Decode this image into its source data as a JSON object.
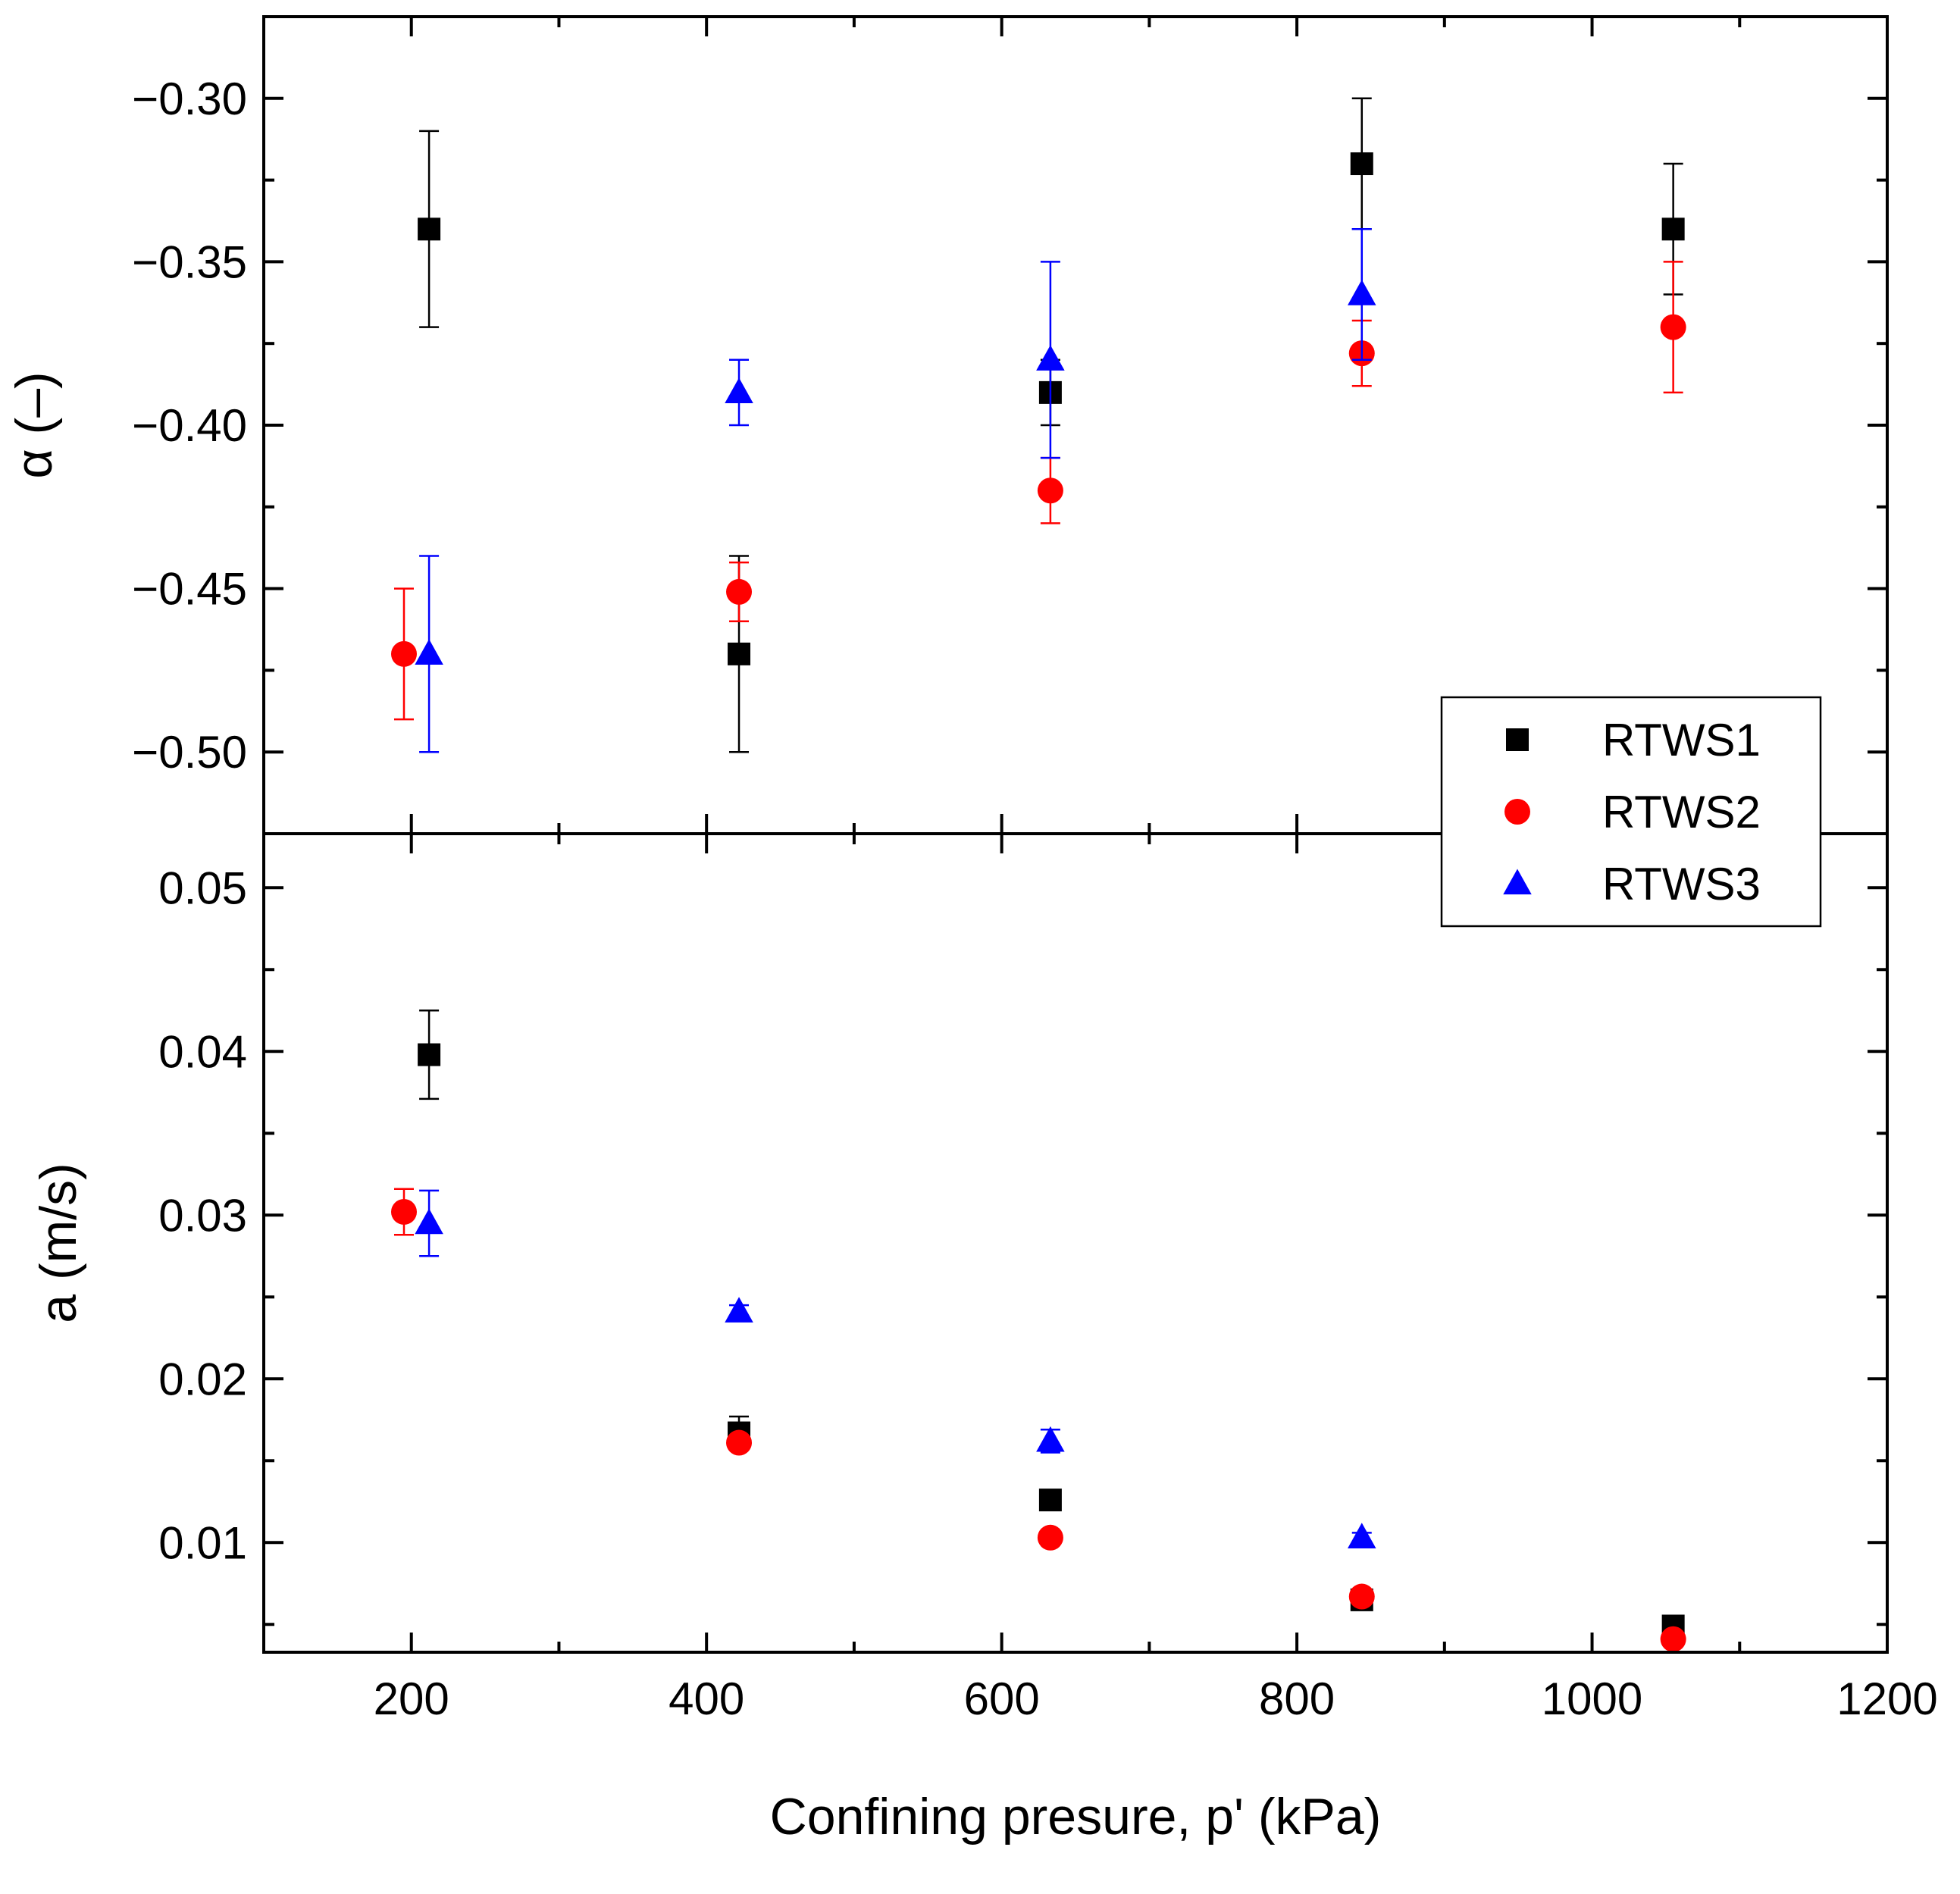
{
  "chart_data": [
    {
      "type": "scatter",
      "panel": "top",
      "xlabel": "",
      "ylabel": "α (–)",
      "xlim": [
        100,
        1200
      ],
      "ylim": [
        -0.525,
        -0.275
      ],
      "yticks": [
        -0.3,
        -0.35,
        -0.4,
        -0.45,
        -0.5
      ],
      "ytick_labels": [
        "−0.30",
        "−0.35",
        "−0.40",
        "−0.45",
        "−0.50"
      ],
      "grid": false,
      "series": [
        {
          "name": "RTWS1",
          "marker": "square",
          "color": "#000000",
          "points": [
            {
              "x": 212,
              "y": -0.34,
              "err_lo": 0.03,
              "err_hi": 0.03
            },
            {
              "x": 422,
              "y": -0.47,
              "err_lo": 0.03,
              "err_hi": 0.03
            },
            {
              "x": 633,
              "y": -0.39,
              "err_lo": 0.01,
              "err_hi": 0.01
            },
            {
              "x": 844,
              "y": -0.32,
              "err_lo": 0.02,
              "err_hi": 0.02
            },
            {
              "x": 1055,
              "y": -0.34,
              "err_lo": 0.02,
              "err_hi": 0.02
            }
          ]
        },
        {
          "name": "RTWS2",
          "marker": "circle",
          "color": "#ff0000",
          "points": [
            {
              "x": 195,
              "y": -0.47,
              "err_lo": 0.02,
              "err_hi": 0.02
            },
            {
              "x": 422,
              "y": -0.451,
              "err_lo": 0.009,
              "err_hi": 0.009
            },
            {
              "x": 633,
              "y": -0.42,
              "err_lo": 0.01,
              "err_hi": 0.01
            },
            {
              "x": 844,
              "y": -0.378,
              "err_lo": 0.01,
              "err_hi": 0.01
            },
            {
              "x": 1055,
              "y": -0.37,
              "err_lo": 0.02,
              "err_hi": 0.02
            }
          ]
        },
        {
          "name": "RTWS3",
          "marker": "triangle",
          "color": "#0000ff",
          "points": [
            {
              "x": 212,
              "y": -0.47,
              "err_lo": 0.03,
              "err_hi": 0.03
            },
            {
              "x": 422,
              "y": -0.39,
              "err_lo": 0.01,
              "err_hi": 0.01
            },
            {
              "x": 633,
              "y": -0.38,
              "err_lo": 0.03,
              "err_hi": 0.03
            },
            {
              "x": 844,
              "y": -0.36,
              "err_lo": 0.02,
              "err_hi": 0.02
            }
          ]
        }
      ]
    },
    {
      "type": "scatter",
      "panel": "bottom",
      "xlabel": "Confining presure, p' (kPa)",
      "ylabel": "a (m/s)",
      "xlim": [
        100,
        1200
      ],
      "ylim": [
        0.0033,
        0.0533
      ],
      "xticks": [
        200,
        400,
        600,
        800,
        1000,
        1200
      ],
      "xtick_labels": [
        "200",
        "400",
        "600",
        "800",
        "1000",
        "1200"
      ],
      "yticks": [
        0.01,
        0.02,
        0.03,
        0.04,
        0.05
      ],
      "ytick_labels": [
        "0.01",
        "0.02",
        "0.03",
        "0.04",
        "0.05"
      ],
      "grid": false,
      "series": [
        {
          "name": "RTWS1",
          "marker": "square",
          "color": "#000000",
          "points": [
            {
              "x": 212,
              "y": 0.0398,
              "err_lo": 0.0027,
              "err_hi": 0.0027
            },
            {
              "x": 422,
              "y": 0.0167,
              "err_lo": 0.001,
              "err_hi": 0.001
            },
            {
              "x": 633,
              "y": 0.0126,
              "err_lo": 0,
              "err_hi": 0
            },
            {
              "x": 844,
              "y": 0.0065,
              "err_lo": 0,
              "err_hi": 0
            },
            {
              "x": 1055,
              "y": 0.0049,
              "err_lo": 0,
              "err_hi": 0
            }
          ]
        },
        {
          "name": "RTWS2",
          "marker": "circle",
          "color": "#ff0000",
          "points": [
            {
              "x": 195,
              "y": 0.0302,
              "err_lo": 0.0014,
              "err_hi": 0.0014
            },
            {
              "x": 422,
              "y": 0.0161,
              "err_lo": 0,
              "err_hi": 0
            },
            {
              "x": 633,
              "y": 0.0103,
              "err_lo": 0,
              "err_hi": 0
            },
            {
              "x": 844,
              "y": 0.0067,
              "err_lo": 0,
              "err_hi": 0
            },
            {
              "x": 1055,
              "y": 0.0041,
              "err_lo": 0,
              "err_hi": 0
            }
          ]
        },
        {
          "name": "RTWS3",
          "marker": "triangle",
          "color": "#0000ff",
          "points": [
            {
              "x": 212,
              "y": 0.0295,
              "err_lo": 0.002,
              "err_hi": 0.002
            },
            {
              "x": 422,
              "y": 0.0241,
              "err_lo": 0.0004,
              "err_hi": 0.0004
            },
            {
              "x": 633,
              "y": 0.0162,
              "err_lo": 0.0007,
              "err_hi": 0.0007
            },
            {
              "x": 844,
              "y": 0.0103,
              "err_lo": 0.0003,
              "err_hi": 0.0003
            }
          ]
        }
      ]
    }
  ],
  "legend": {
    "placement": "bottom-right of top panel",
    "entries": [
      {
        "label": "RTWS1",
        "marker": "square",
        "color": "#000000"
      },
      {
        "label": "RTWS2",
        "marker": "circle",
        "color": "#ff0000"
      },
      {
        "label": "RTWS3",
        "marker": "triangle",
        "color": "#0000ff"
      }
    ]
  }
}
